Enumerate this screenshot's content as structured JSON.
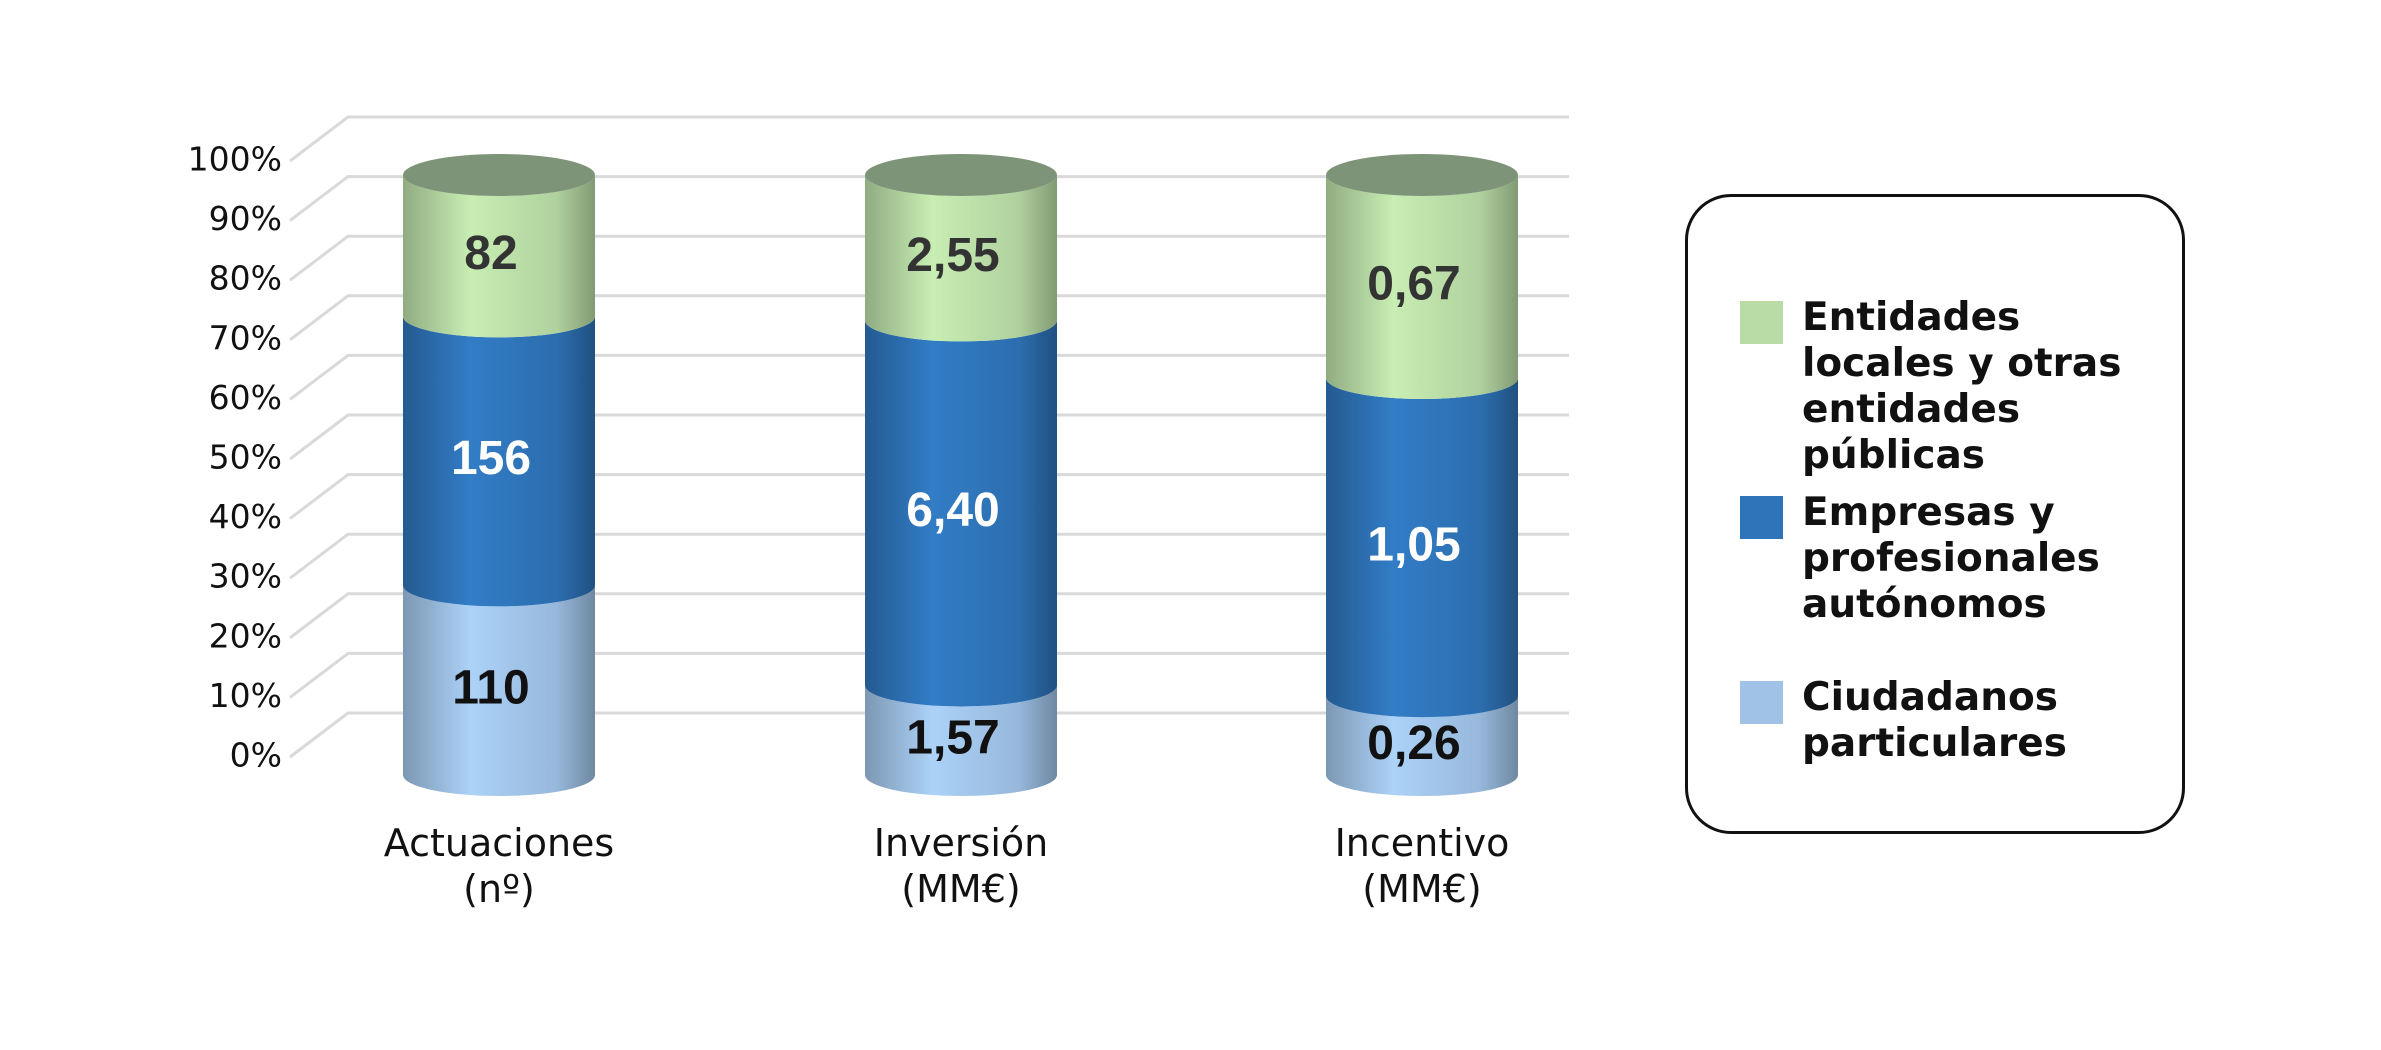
{
  "chart_data": {
    "type": "stacked_cylinder_percent",
    "categories": [
      "Actuaciones\n(nº)",
      "Inversión\n(MM€)",
      "Incentivo\n(MM€)"
    ],
    "series": [
      {
        "name": "Ciudadanos particulares",
        "color": "#9fc2e6",
        "values": [
          110,
          1.57,
          0.26
        ],
        "value_labels": [
          "110",
          "1,57",
          "0,26"
        ]
      },
      {
        "name": "Empresas y profesionales autónomos",
        "color": "#2e74b8",
        "values": [
          156,
          6.4,
          1.05
        ],
        "value_labels": [
          "156",
          "6,40",
          "1,05"
        ]
      },
      {
        "name": "Entidades locales y otras entidades públicas",
        "color": "#b9dca6",
        "values": [
          82,
          2.55,
          0.67
        ],
        "value_labels": [
          "82",
          "2,55",
          "0,67"
        ]
      }
    ],
    "ylim": [
      0,
      100
    ],
    "yticks": [
      {
        "value": 0,
        "label": "0%"
      },
      {
        "value": 10,
        "label": "10%"
      },
      {
        "value": 20,
        "label": "20%"
      },
      {
        "value": 30,
        "label": "30%"
      },
      {
        "value": 40,
        "label": "40%"
      },
      {
        "value": 50,
        "label": "50%"
      },
      {
        "value": 60,
        "label": "60%"
      },
      {
        "value": 70,
        "label": "70%"
      },
      {
        "value": 80,
        "label": "80%"
      },
      {
        "value": 90,
        "label": "90%"
      },
      {
        "value": 100,
        "label": "100%"
      }
    ],
    "grid": true,
    "legend": "right"
  }
}
